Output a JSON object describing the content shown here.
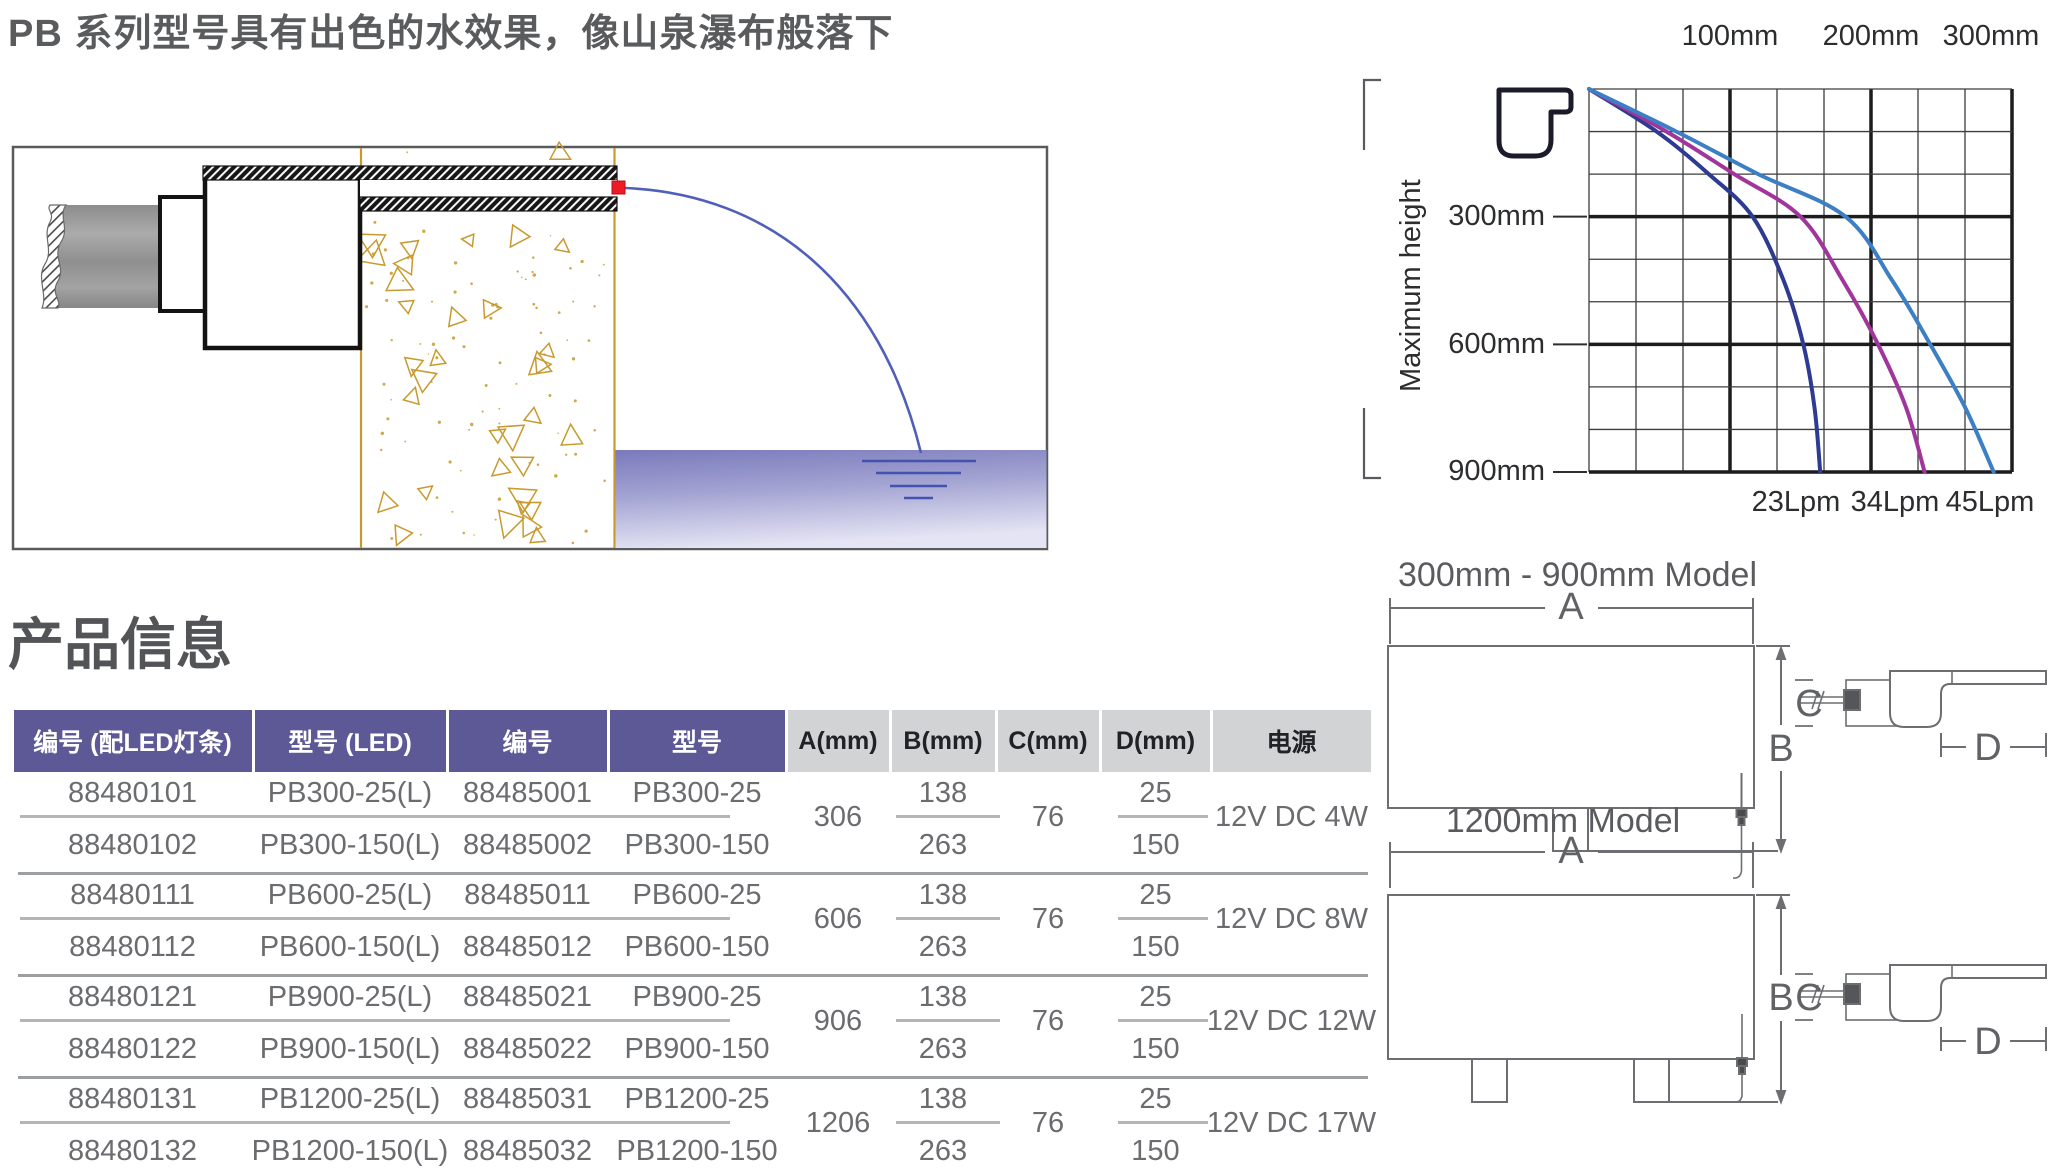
{
  "page_title": "PB 系列型号具有出色的水效果，像山泉瀑布般落下",
  "section_title": "产品信息",
  "chart_data": {
    "type": "line",
    "title": "",
    "ylabel": "Maximum height",
    "top_axis_labels": [
      "100mm",
      "200mm",
      "300mm"
    ],
    "left_axis_labels": [
      "300mm",
      "600mm",
      "900mm"
    ],
    "bottom_axis_labels": [
      "23Lpm",
      "34Lpm",
      "45Lpm"
    ],
    "x_range_mm": [
      0,
      300
    ],
    "y_range_mm": [
      0,
      900
    ],
    "grid": {
      "cols": 9,
      "rows": 9,
      "major_every": 3,
      "grid_on": true
    },
    "series": [
      {
        "name": "23Lpm",
        "color": "#2e3b92",
        "drop_mm": [
          0,
          100,
          200,
          300,
          450,
          600,
          750,
          900
        ],
        "x_mm": [
          0,
          48,
          85,
          116,
          138,
          152,
          160,
          164
        ]
      },
      {
        "name": "34Lpm",
        "color": "#a0369b",
        "drop_mm": [
          0,
          100,
          200,
          300,
          450,
          600,
          750,
          900
        ],
        "x_mm": [
          0,
          55,
          103,
          150,
          180,
          205,
          225,
          238
        ]
      },
      {
        "name": "45Lpm",
        "color": "#3c7fc4",
        "drop_mm": [
          0,
          100,
          200,
          300,
          450,
          600,
          750,
          900
        ],
        "x_mm": [
          0,
          62,
          120,
          182,
          215,
          242,
          267,
          287
        ]
      }
    ]
  },
  "drawings": {
    "model1_title": "300mm - 900mm Model",
    "model2_title": "1200mm Model",
    "dim_labels": [
      "A",
      "B",
      "C",
      "D"
    ]
  },
  "table": {
    "headers": [
      "编号 (配LED灯条)",
      "型号 (LED)",
      "编号",
      "型号",
      "A(mm)",
      "B(mm)",
      "C(mm)",
      "D(mm)",
      "电源"
    ],
    "groups": [
      {
        "rows": [
          [
            "88480101",
            "PB300-25(L)",
            "88485001",
            "PB300-25"
          ],
          [
            "88480102",
            "PB300-150(L)",
            "88485002",
            "PB300-150"
          ]
        ],
        "a": "306",
        "b": [
          "138",
          "263"
        ],
        "c": "76",
        "d": [
          "25",
          "150"
        ],
        "power": "12V DC 4W"
      },
      {
        "rows": [
          [
            "88480111",
            "PB600-25(L)",
            "88485011",
            "PB600-25"
          ],
          [
            "88480112",
            "PB600-150(L)",
            "88485012",
            "PB600-150"
          ]
        ],
        "a": "606",
        "b": [
          "138",
          "263"
        ],
        "c": "76",
        "d": [
          "25",
          "150"
        ],
        "power": "12V DC 8W"
      },
      {
        "rows": [
          [
            "88480121",
            "PB900-25(L)",
            "88485021",
            "PB900-25"
          ],
          [
            "88480122",
            "PB900-150(L)",
            "88485022",
            "PB900-150"
          ]
        ],
        "a": "906",
        "b": [
          "138",
          "263"
        ],
        "c": "76",
        "d": [
          "25",
          "150"
        ],
        "power": "12V DC 12W"
      },
      {
        "rows": [
          [
            "88480131",
            "PB1200-25(L)",
            "88485031",
            "PB1200-25"
          ],
          [
            "88480132",
            "PB1200-150(L)",
            "88485032",
            "PB1200-150"
          ]
        ],
        "a": "1206",
        "b": [
          "138",
          "263"
        ],
        "c": "76",
        "d": [
          "25",
          "150"
        ],
        "power": "12V DC 17W"
      }
    ]
  },
  "colors": {
    "header_purple": "#5d5996",
    "header_gray": "#d2d3d5",
    "wall_orange": "#c9992e",
    "pool_purple_dark": "#7a7abc",
    "pool_purple_light": "#e4e4f4",
    "red_marker": "#ed1c24",
    "curve_dark_blue": "#2e3b92",
    "curve_magenta": "#a0369b",
    "curve_light_blue": "#3c7fc4",
    "line_gray": "#6d6e71"
  }
}
